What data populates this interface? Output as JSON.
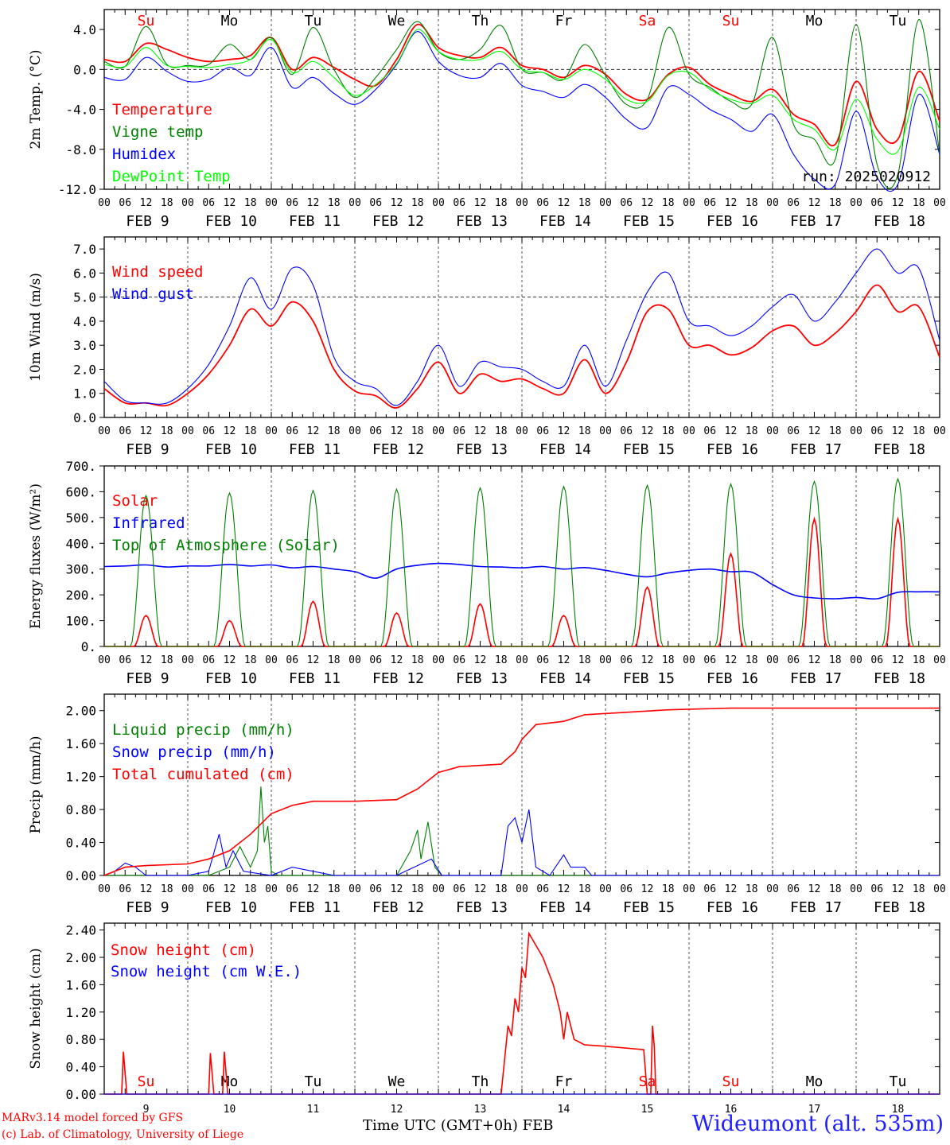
{
  "run_label": "run: 2025020912",
  "station": "Wideumont (alt. 535m)",
  "credit_line1": "MARv3.14 model forced by GFS",
  "credit_line2": "(c) Lab. of Climatology, University of Liege",
  "x_axis_label": "Time UTC (GMT+0h)",
  "month_label": "FEB",
  "hour_ticks": [
    "00",
    "06",
    "12",
    "18"
  ],
  "date_labels": [
    "FEB  9",
    "FEB 10",
    "FEB 11",
    "FEB 12",
    "FEB 13",
    "FEB 14",
    "FEB 15",
    "FEB 16",
    "FEB 17",
    "FEB 18"
  ],
  "day_numbers": [
    "9",
    "10",
    "11",
    "12",
    "13",
    "14",
    "15",
    "16",
    "17",
    "18"
  ],
  "weekday_labels": [
    "Su",
    "Mo",
    "Tu",
    "We",
    "Th",
    "Fr",
    "Sa",
    "Su",
    "Mo",
    "Tu"
  ],
  "weekend_color": "#ff0000",
  "colors": {
    "red": "#ff0000",
    "green": "#008000",
    "blue": "#0000ff",
    "light_green": "#00ff00"
  },
  "chart_data": [
    {
      "type": "line",
      "ylabel": "2m Temp. (°C)",
      "ylim": [
        -12,
        6
      ],
      "yticks": [
        "4.0",
        "0.0",
        "-4.0",
        "-8.0",
        "-12.0"
      ],
      "reference_line": 0,
      "x_hours": [
        0,
        6,
        12,
        18,
        24,
        30,
        36,
        42,
        48,
        54,
        60,
        66,
        72,
        78,
        84,
        90,
        96,
        102,
        108,
        114,
        120,
        126,
        132,
        138,
        144,
        150,
        156,
        162,
        168,
        174,
        180,
        186,
        192,
        198,
        204,
        210,
        216,
        222,
        228,
        234,
        240
      ],
      "series": [
        {
          "name": "Temperature",
          "color": "#ff0000",
          "values": [
            1.0,
            0.8,
            2.6,
            2.0,
            1.2,
            0.8,
            1.0,
            1.4,
            3.2,
            0.0,
            1.2,
            0.2,
            -1.0,
            -1.6,
            1.0,
            4.5,
            2.2,
            1.4,
            1.2,
            2.2,
            0.4,
            0.0,
            -0.8,
            0.4,
            -0.5,
            -2.5,
            -3.0,
            -0.5,
            0.2,
            -1.5,
            -2.5,
            -3.2,
            -2.0,
            -4.5,
            -5.5,
            -7.5,
            -1.2,
            -6.0,
            -7.0,
            -0.2,
            -5.2
          ]
        },
        {
          "name": "Vigne temp",
          "color": "#008000",
          "values": [
            0.8,
            0.3,
            4.3,
            0.5,
            0.4,
            0.5,
            2.5,
            1.0,
            3.2,
            -0.5,
            4.2,
            0.0,
            -2.8,
            -0.8,
            2.0,
            4.8,
            1.8,
            1.0,
            2.0,
            4.4,
            0.0,
            -0.3,
            -1.0,
            2.5,
            -0.6,
            -3.5,
            -3.0,
            4.2,
            -0.5,
            -1.8,
            -3.2,
            -3.5,
            3.2,
            -5.5,
            -7.0,
            -9.0,
            4.5,
            -9.5,
            -10.5,
            5.0,
            -8.5
          ]
        },
        {
          "name": "Humidex",
          "color": "#0000ff",
          "values": [
            -0.8,
            -1.0,
            1.2,
            -0.2,
            -1.2,
            -1.0,
            0.2,
            -0.6,
            2.2,
            -1.8,
            -0.8,
            -2.4,
            -3.5,
            -2.0,
            0.5,
            3.8,
            0.8,
            -0.6,
            -0.8,
            0.6,
            -1.6,
            -2.2,
            -2.8,
            -1.5,
            -2.8,
            -5.0,
            -5.8,
            -1.8,
            -2.5,
            -4.0,
            -5.0,
            -6.2,
            -4.5,
            -8.5,
            -11.0,
            -11.5,
            -4.2,
            -10.8,
            -11.5,
            -2.5,
            -8.5
          ]
        },
        {
          "name": "DewPoint Temp",
          "color": "#00ff00",
          "values": [
            0.5,
            0.3,
            2.2,
            0.4,
            0.3,
            0.2,
            0.5,
            1.0,
            3.0,
            -0.3,
            0.8,
            -0.8,
            -2.6,
            -1.5,
            0.6,
            4.0,
            1.8,
            1.0,
            1.0,
            1.8,
            0.0,
            -0.3,
            -1.0,
            0.0,
            -1.0,
            -3.0,
            -3.2,
            -0.6,
            -0.3,
            -2.0,
            -3.0,
            -3.4,
            -2.6,
            -5.0,
            -6.0,
            -8.0,
            -3.0,
            -7.0,
            -8.2,
            -1.8,
            -6.0
          ]
        }
      ]
    },
    {
      "type": "line",
      "ylabel": "10m Wind (m/s)",
      "ylim": [
        0,
        7.5
      ],
      "yticks": [
        "7.0",
        "6.0",
        "5.0",
        "4.0",
        "3.0",
        "2.0",
        "1.0",
        "0.0"
      ],
      "reference_line": 5,
      "x_hours": [
        0,
        6,
        12,
        18,
        24,
        30,
        36,
        42,
        48,
        54,
        60,
        66,
        72,
        78,
        84,
        90,
        96,
        102,
        108,
        114,
        120,
        126,
        132,
        138,
        144,
        150,
        156,
        162,
        168,
        174,
        180,
        186,
        192,
        198,
        204,
        210,
        216,
        222,
        228,
        234,
        240
      ],
      "series": [
        {
          "name": "Wind speed",
          "color": "#ff0000",
          "values": [
            1.2,
            0.6,
            0.6,
            0.5,
            1.0,
            1.8,
            3.0,
            4.5,
            3.8,
            4.8,
            4.0,
            2.0,
            1.1,
            0.9,
            0.4,
            1.2,
            2.3,
            1.0,
            1.8,
            1.5,
            1.6,
            1.2,
            1.0,
            2.4,
            1.0,
            2.3,
            4.4,
            4.5,
            3.0,
            3.0,
            2.6,
            2.9,
            3.6,
            3.8,
            3.0,
            3.5,
            4.4,
            5.5,
            4.4,
            4.6,
            2.5
          ]
        },
        {
          "name": "Wind gust",
          "color": "#0000ff",
          "values": [
            1.5,
            0.7,
            0.6,
            0.6,
            1.2,
            2.2,
            3.8,
            5.8,
            4.5,
            6.2,
            5.5,
            2.5,
            1.5,
            1.2,
            0.5,
            1.5,
            3.0,
            1.3,
            2.3,
            2.1,
            2.0,
            1.5,
            1.3,
            3.0,
            1.3,
            3.2,
            5.2,
            6.0,
            4.0,
            3.8,
            3.4,
            3.8,
            4.6,
            5.1,
            4.0,
            4.8,
            6.0,
            7.0,
            6.0,
            6.2,
            3.2
          ]
        }
      ]
    },
    {
      "type": "line",
      "ylabel": "Energy fluxes (W/m²)",
      "ylim": [
        0,
        700
      ],
      "yticks": [
        "700.",
        "600.",
        "500.",
        "400.",
        "300.",
        "200.",
        "100.",
        "0."
      ],
      "series": [
        {
          "name": "Solar",
          "color": "#ff0000",
          "peak_values": [
            120,
            100,
            175,
            130,
            165,
            120,
            230,
            360,
            495,
            495
          ]
        },
        {
          "name": "Infrared",
          "color": "#0000ff",
          "values": [
            310,
            312,
            316,
            308,
            312,
            312,
            318,
            312,
            316,
            305,
            310,
            300,
            290,
            265,
            300,
            315,
            322,
            318,
            310,
            308,
            305,
            310,
            300,
            306,
            295,
            280,
            270,
            285,
            295,
            300,
            290,
            288,
            240,
            200,
            188,
            185,
            190,
            185,
            210,
            212,
            212
          ]
        },
        {
          "name": "Top of Atmosphere (Solar)",
          "color": "#008000",
          "peak_values": [
            585,
            595,
            605,
            610,
            615,
            620,
            625,
            630,
            640,
            650
          ]
        }
      ]
    },
    {
      "type": "line",
      "ylabel": "Precip (mm/h)",
      "ylim": [
        0,
        2.2
      ],
      "yticks": [
        "2.00",
        "1.60",
        "1.20",
        "0.80",
        "0.40",
        "0.00"
      ],
      "series": [
        {
          "name": "Liquid precip (mm/h)",
          "color": "#008000",
          "points": [
            [
              0,
              0
            ],
            [
              6,
              0
            ],
            [
              30,
              0
            ],
            [
              33,
              0.05
            ],
            [
              36,
              0.1
            ],
            [
              39,
              0.35
            ],
            [
              42,
              0.1
            ],
            [
              44,
              0.3
            ],
            [
              45,
              1.08
            ],
            [
              46,
              0.4
            ],
            [
              47,
              0.6
            ],
            [
              48,
              0.05
            ],
            [
              50,
              0
            ],
            [
              84,
              0
            ],
            [
              88,
              0.3
            ],
            [
              90,
              0.55
            ],
            [
              91,
              0.2
            ],
            [
              93,
              0.65
            ],
            [
              95,
              0.1
            ],
            [
              97,
              0
            ],
            [
              240,
              0
            ]
          ]
        },
        {
          "name": "Snow precip (mm/h)",
          "color": "#0000ff",
          "points": [
            [
              0,
              0
            ],
            [
              3,
              0.05
            ],
            [
              6,
              0.15
            ],
            [
              9,
              0.1
            ],
            [
              12,
              0
            ],
            [
              24,
              0
            ],
            [
              30,
              0.05
            ],
            [
              33,
              0.5
            ],
            [
              35,
              0.1
            ],
            [
              37,
              0.3
            ],
            [
              40,
              0.05
            ],
            [
              48,
              0
            ],
            [
              54,
              0.1
            ],
            [
              60,
              0.05
            ],
            [
              66,
              0
            ],
            [
              84,
              0
            ],
            [
              94,
              0.2
            ],
            [
              97,
              0
            ],
            [
              114,
              0
            ],
            [
              116,
              0.6
            ],
            [
              118,
              0.7
            ],
            [
              120,
              0.4
            ],
            [
              122,
              0.8
            ],
            [
              124,
              0.1
            ],
            [
              128,
              0
            ],
            [
              132,
              0.25
            ],
            [
              134,
              0.1
            ],
            [
              138,
              0.1
            ],
            [
              140,
              0
            ],
            [
              240,
              0
            ]
          ]
        },
        {
          "name": "Total cumulated (cm)",
          "color": "#ff0000",
          "points": [
            [
              0,
              0
            ],
            [
              6,
              0.1
            ],
            [
              12,
              0.12
            ],
            [
              24,
              0.14
            ],
            [
              30,
              0.2
            ],
            [
              36,
              0.3
            ],
            [
              42,
              0.5
            ],
            [
              48,
              0.75
            ],
            [
              54,
              0.85
            ],
            [
              60,
              0.9
            ],
            [
              72,
              0.9
            ],
            [
              84,
              0.92
            ],
            [
              90,
              1.05
            ],
            [
              96,
              1.25
            ],
            [
              102,
              1.32
            ],
            [
              114,
              1.35
            ],
            [
              118,
              1.5
            ],
            [
              120,
              1.65
            ],
            [
              124,
              1.83
            ],
            [
              132,
              1.87
            ],
            [
              138,
              1.95
            ],
            [
              150,
              1.98
            ],
            [
              162,
              2.01
            ],
            [
              180,
              2.03
            ],
            [
              240,
              2.03
            ]
          ]
        }
      ]
    },
    {
      "type": "line",
      "ylabel": "Snow height (cm)",
      "ylim": [
        0,
        2.5
      ],
      "yticks": [
        "2.40",
        "2.00",
        "1.60",
        "1.20",
        "0.80",
        "0.40",
        "0.00"
      ],
      "series": [
        {
          "name": "Snow height (cm)",
          "color": "#ff0000",
          "points": [
            [
              0,
              0
            ],
            [
              5,
              0
            ],
            [
              5.5,
              0.62
            ],
            [
              6.5,
              0
            ],
            [
              30,
              0
            ],
            [
              30.5,
              0.6
            ],
            [
              31.5,
              0
            ],
            [
              34,
              0
            ],
            [
              34.5,
              0.62
            ],
            [
              35.5,
              0
            ],
            [
              114,
              0
            ],
            [
              116,
              1.0
            ],
            [
              117,
              0.85
            ],
            [
              118,
              1.4
            ],
            [
              119,
              1.2
            ],
            [
              120,
              1.85
            ],
            [
              121,
              1.7
            ],
            [
              122,
              2.35
            ],
            [
              126,
              2.0
            ],
            [
              129,
              1.6
            ],
            [
              131,
              1.2
            ],
            [
              132,
              0.8
            ],
            [
              133,
              1.2
            ],
            [
              135,
              0.8
            ],
            [
              138,
              0.72
            ],
            [
              144,
              0.7
            ],
            [
              155,
              0.65
            ],
            [
              156,
              0
            ],
            [
              157,
              0
            ],
            [
              157.5,
              1.0
            ],
            [
              158,
              0.7
            ],
            [
              158.5,
              0
            ],
            [
              240,
              0
            ]
          ]
        },
        {
          "name": "Snow height (cm W.E.)",
          "color": "#0000ff",
          "points": [
            [
              0,
              0
            ],
            [
              240,
              0
            ]
          ]
        }
      ]
    }
  ]
}
